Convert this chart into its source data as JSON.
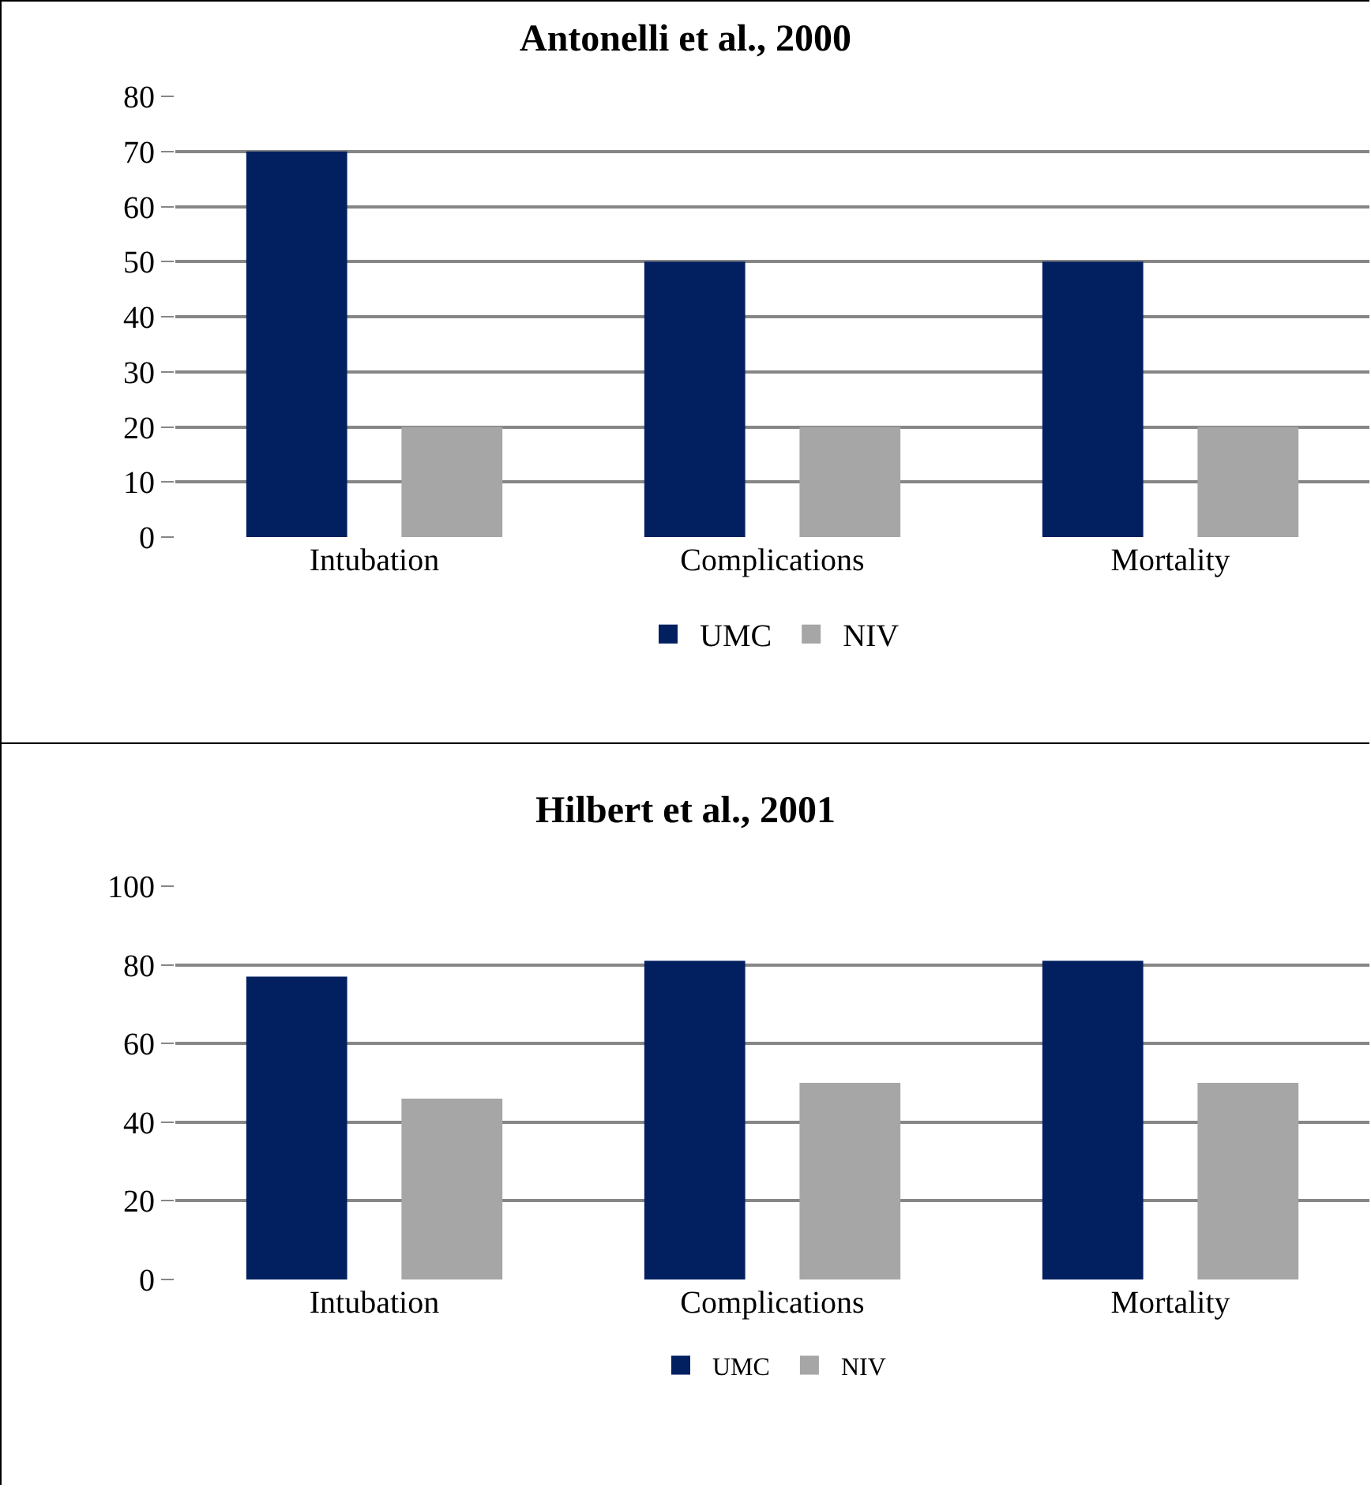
{
  "chart_data": [
    {
      "type": "bar",
      "title": "Antonelli et al., 2000",
      "categories": [
        "Intubation",
        "Complications",
        "Mortality"
      ],
      "series": [
        {
          "name": "UMC",
          "color": "#022060",
          "values": [
            70,
            50,
            50
          ]
        },
        {
          "name": "NIV",
          "color": "#a6a6a6",
          "values": [
            20,
            20,
            20
          ]
        }
      ],
      "ylim": [
        0,
        80
      ],
      "yticks": [
        0,
        10,
        20,
        30,
        40,
        50,
        60,
        70,
        80
      ],
      "grid": "y",
      "legend": "bottom"
    },
    {
      "type": "bar",
      "title": "Hilbert et al., 2001",
      "categories": [
        "Intubation",
        "Complications",
        "Mortality"
      ],
      "series": [
        {
          "name": "UMC",
          "color": "#022060",
          "values": [
            77,
            81,
            81
          ]
        },
        {
          "name": "NIV",
          "color": "#a6a6a6",
          "values": [
            46,
            50,
            50
          ]
        }
      ],
      "ylim": [
        0,
        100
      ],
      "yticks": [
        0,
        20,
        40,
        60,
        80,
        100
      ],
      "grid": "y",
      "legend": "bottom"
    }
  ]
}
